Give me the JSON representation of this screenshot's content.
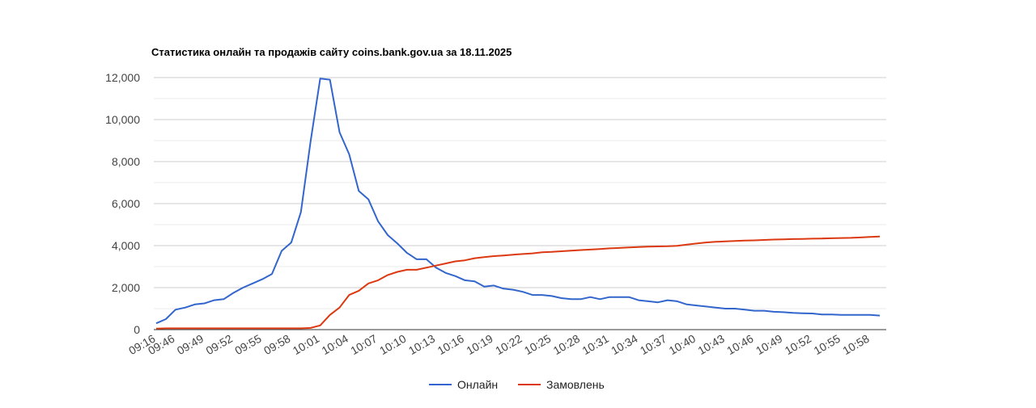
{
  "title": "Статистика онлайн та продажів сайту coins.bank.gov.ua за 18.11.2025",
  "chart_data": {
    "type": "line",
    "title": "Статистика онлайн та продажів сайту coins.bank.gov.ua за 18.11.2025",
    "ylim": [
      0,
      12000
    ],
    "yticks": [
      "0",
      "2,000",
      "4,000",
      "6,000",
      "8,000",
      "10,000",
      "12,000"
    ],
    "ytick_values": [
      0,
      2000,
      4000,
      6000,
      8000,
      10000,
      12000
    ],
    "xtick_labels": [
      "09:16",
      "09:46",
      "09:49",
      "09:52",
      "09:55",
      "09:58",
      "10:01",
      "10:04",
      "10:07",
      "10:10",
      "10:13",
      "10:16",
      "10:19",
      "10:22",
      "10:25",
      "10:28",
      "10:31",
      "10:34",
      "10:37",
      "10:40",
      "10:43",
      "10:46",
      "10:49",
      "10:52",
      "10:55",
      "10:58"
    ],
    "x": [
      "09:16",
      "09:45",
      "09:46",
      "09:47",
      "09:48",
      "09:49",
      "09:50",
      "09:51",
      "09:52",
      "09:53",
      "09:54",
      "09:55",
      "09:56",
      "09:57",
      "09:58",
      "09:59",
      "10:00",
      "10:01",
      "10:02",
      "10:03",
      "10:04",
      "10:05",
      "10:06",
      "10:07",
      "10:08",
      "10:09",
      "10:10",
      "10:11",
      "10:12",
      "10:13",
      "10:14",
      "10:15",
      "10:16",
      "10:17",
      "10:18",
      "10:19",
      "10:20",
      "10:21",
      "10:22",
      "10:23",
      "10:24",
      "10:25",
      "10:26",
      "10:27",
      "10:28",
      "10:29",
      "10:30",
      "10:31",
      "10:32",
      "10:33",
      "10:34",
      "10:35",
      "10:36",
      "10:37",
      "10:38",
      "10:39",
      "10:40",
      "10:41",
      "10:42",
      "10:43",
      "10:44",
      "10:45",
      "10:46",
      "10:47",
      "10:48",
      "10:49",
      "10:50",
      "10:51",
      "10:52",
      "10:53",
      "10:54",
      "10:55",
      "10:56",
      "10:57",
      "10:58",
      "10:59"
    ],
    "series": [
      {
        "name": "Онлайн",
        "color": "#3366cc",
        "values": [
          300,
          500,
          950,
          1050,
          1200,
          1250,
          1400,
          1450,
          1750,
          2000,
          2200,
          2400,
          2650,
          3750,
          4150,
          5600,
          8950,
          11950,
          11900,
          9400,
          8350,
          6600,
          6200,
          5150,
          4500,
          4100,
          3650,
          3350,
          3350,
          2950,
          2700,
          2550,
          2350,
          2300,
          2050,
          2100,
          1950,
          1900,
          1800,
          1650,
          1650,
          1600,
          1500,
          1450,
          1450,
          1550,
          1450,
          1550,
          1550,
          1550,
          1400,
          1350,
          1300,
          1400,
          1350,
          1200,
          1150,
          1100,
          1050,
          1000,
          1000,
          950,
          900,
          900,
          850,
          830,
          800,
          780,
          770,
          720,
          720,
          700,
          700,
          700,
          700,
          670
        ]
      },
      {
        "name": "Замовлень",
        "color": "#dc3912",
        "values": [
          50,
          60,
          60,
          60,
          60,
          60,
          60,
          60,
          60,
          60,
          60,
          60,
          60,
          60,
          60,
          60,
          80,
          200,
          700,
          1050,
          1650,
          1850,
          2200,
          2350,
          2600,
          2750,
          2850,
          2850,
          2950,
          3050,
          3150,
          3250,
          3300,
          3400,
          3450,
          3500,
          3530,
          3570,
          3600,
          3630,
          3680,
          3700,
          3730,
          3760,
          3790,
          3810,
          3840,
          3870,
          3890,
          3910,
          3930,
          3950,
          3960,
          3970,
          3990,
          4050,
          4100,
          4150,
          4180,
          4200,
          4220,
          4240,
          4250,
          4270,
          4290,
          4300,
          4310,
          4320,
          4330,
          4340,
          4350,
          4360,
          4370,
          4390,
          4410,
          4430
        ]
      }
    ],
    "grid": true,
    "legend_position": "bottom"
  }
}
